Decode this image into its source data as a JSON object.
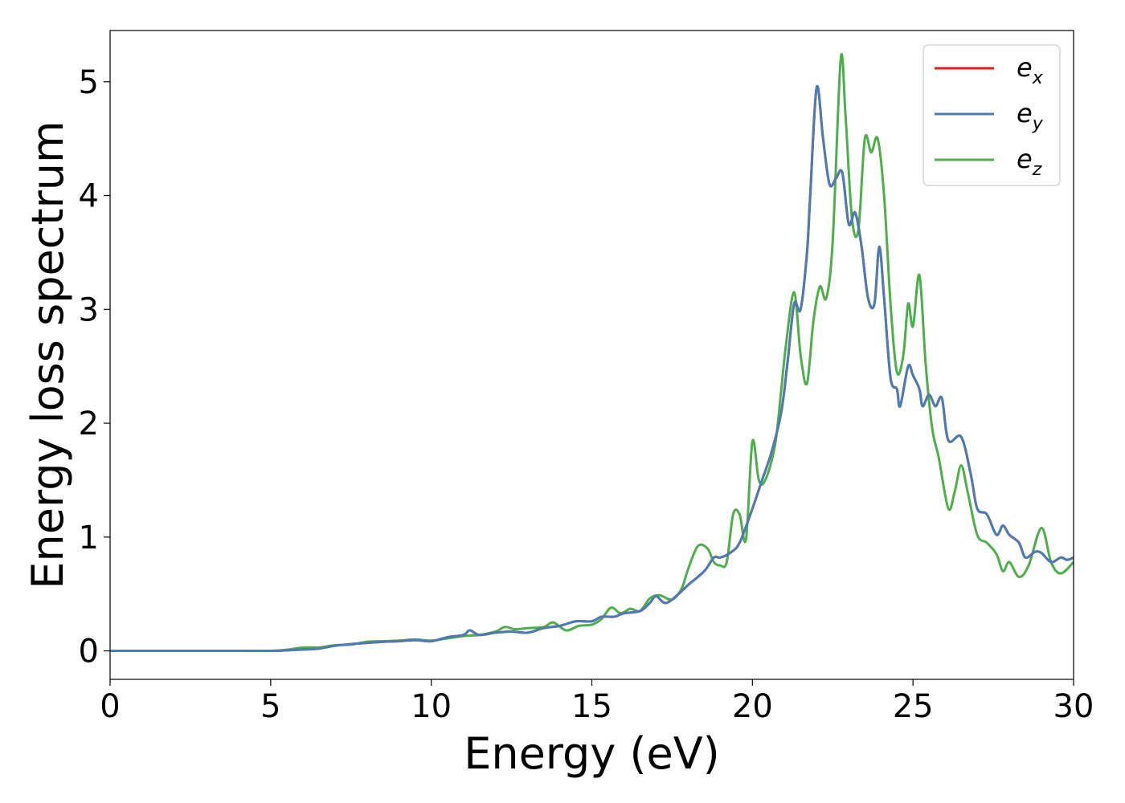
{
  "chart_data": {
    "type": "line",
    "title": "",
    "xlabel": "Energy (eV)",
    "ylabel": "Energy loss spectrum",
    "xlim": [
      0,
      30
    ],
    "ylim": [
      -0.25,
      5.45
    ],
    "xticks": [
      0,
      5,
      10,
      15,
      20,
      25,
      30
    ],
    "yticks": [
      0,
      1,
      2,
      3,
      4,
      5
    ],
    "xtick_labels": [
      "0",
      "5",
      "10",
      "15",
      "20",
      "25",
      "30"
    ],
    "ytick_labels": [
      "0",
      "1",
      "2",
      "3",
      "4",
      "5"
    ],
    "grid": false,
    "legend_position": "top-right",
    "series": [
      {
        "name": "e",
        "name_sub": "x",
        "color": "#e41a1c",
        "points": [
          [
            0,
            0
          ],
          [
            2,
            0
          ],
          [
            4,
            0
          ],
          [
            5,
            0
          ],
          [
            5.5,
            0.005
          ],
          [
            6,
            0.012
          ],
          [
            6.5,
            0.02
          ],
          [
            7,
            0.045
          ],
          [
            7.5,
            0.06
          ],
          [
            8,
            0.07
          ],
          [
            8.5,
            0.08
          ],
          [
            9,
            0.085
          ],
          [
            9.5,
            0.095
          ],
          [
            10,
            0.085
          ],
          [
            10.5,
            0.12
          ],
          [
            11,
            0.14
          ],
          [
            11.2,
            0.18
          ],
          [
            11.5,
            0.14
          ],
          [
            12,
            0.16
          ],
          [
            12.5,
            0.17
          ],
          [
            13,
            0.16
          ],
          [
            13.5,
            0.2
          ],
          [
            14,
            0.22
          ],
          [
            14.5,
            0.26
          ],
          [
            15,
            0.26
          ],
          [
            15.3,
            0.3
          ],
          [
            15.7,
            0.3
          ],
          [
            16,
            0.33
          ],
          [
            16.5,
            0.35
          ],
          [
            16.8,
            0.42
          ],
          [
            17,
            0.48
          ],
          [
            17.3,
            0.42
          ],
          [
            17.7,
            0.5
          ],
          [
            18,
            0.58
          ],
          [
            18.5,
            0.7
          ],
          [
            18.8,
            0.82
          ],
          [
            19,
            0.82
          ],
          [
            19.3,
            0.86
          ],
          [
            19.6,
            0.95
          ],
          [
            20,
            1.25
          ],
          [
            20.3,
            1.5
          ],
          [
            20.6,
            1.75
          ],
          [
            20.9,
            2.1
          ],
          [
            21.1,
            2.55
          ],
          [
            21.3,
            3.05
          ],
          [
            21.5,
            3.0
          ],
          [
            21.7,
            3.5
          ],
          [
            21.8,
            4.0
          ],
          [
            22,
            4.95
          ],
          [
            22.2,
            4.5
          ],
          [
            22.4,
            4.1
          ],
          [
            22.6,
            4.15
          ],
          [
            22.8,
            4.2
          ],
          [
            23,
            3.75
          ],
          [
            23.2,
            3.85
          ],
          [
            23.4,
            3.55
          ],
          [
            23.6,
            3.1
          ],
          [
            23.8,
            3.05
          ],
          [
            23.95,
            3.55
          ],
          [
            24.1,
            3.1
          ],
          [
            24.3,
            2.4
          ],
          [
            24.5,
            2.3
          ],
          [
            24.6,
            2.15
          ],
          [
            24.85,
            2.5
          ],
          [
            25,
            2.42
          ],
          [
            25.2,
            2.3
          ],
          [
            25.3,
            2.15
          ],
          [
            25.5,
            2.25
          ],
          [
            25.7,
            2.15
          ],
          [
            25.9,
            2.22
          ],
          [
            26.1,
            1.85
          ],
          [
            26.5,
            1.88
          ],
          [
            26.8,
            1.55
          ],
          [
            27,
            1.25
          ],
          [
            27.3,
            1.2
          ],
          [
            27.6,
            1.02
          ],
          [
            27.8,
            1.1
          ],
          [
            28,
            1.02
          ],
          [
            28.3,
            0.95
          ],
          [
            28.5,
            0.82
          ],
          [
            28.8,
            0.87
          ],
          [
            29,
            0.86
          ],
          [
            29.3,
            0.78
          ],
          [
            29.6,
            0.82
          ],
          [
            29.8,
            0.8
          ],
          [
            30,
            0.82
          ]
        ]
      },
      {
        "name": "e",
        "name_sub": "y",
        "color": "#4a7cb5",
        "points": [
          [
            0,
            0
          ],
          [
            2,
            0
          ],
          [
            4,
            0
          ],
          [
            5,
            0
          ],
          [
            5.5,
            0.005
          ],
          [
            6,
            0.012
          ],
          [
            6.5,
            0.02
          ],
          [
            7,
            0.045
          ],
          [
            7.5,
            0.06
          ],
          [
            8,
            0.07
          ],
          [
            8.5,
            0.08
          ],
          [
            9,
            0.085
          ],
          [
            9.5,
            0.095
          ],
          [
            10,
            0.085
          ],
          [
            10.5,
            0.12
          ],
          [
            11,
            0.14
          ],
          [
            11.2,
            0.18
          ],
          [
            11.5,
            0.14
          ],
          [
            12,
            0.16
          ],
          [
            12.5,
            0.17
          ],
          [
            13,
            0.16
          ],
          [
            13.5,
            0.2
          ],
          [
            14,
            0.22
          ],
          [
            14.5,
            0.26
          ],
          [
            15,
            0.26
          ],
          [
            15.3,
            0.3
          ],
          [
            15.7,
            0.3
          ],
          [
            16,
            0.33
          ],
          [
            16.5,
            0.35
          ],
          [
            16.8,
            0.42
          ],
          [
            17,
            0.48
          ],
          [
            17.3,
            0.42
          ],
          [
            17.7,
            0.5
          ],
          [
            18,
            0.58
          ],
          [
            18.5,
            0.7
          ],
          [
            18.8,
            0.82
          ],
          [
            19,
            0.82
          ],
          [
            19.3,
            0.86
          ],
          [
            19.6,
            0.95
          ],
          [
            20,
            1.25
          ],
          [
            20.3,
            1.5
          ],
          [
            20.6,
            1.75
          ],
          [
            20.9,
            2.1
          ],
          [
            21.1,
            2.55
          ],
          [
            21.3,
            3.05
          ],
          [
            21.5,
            3.0
          ],
          [
            21.7,
            3.5
          ],
          [
            21.8,
            4.0
          ],
          [
            22,
            4.95
          ],
          [
            22.2,
            4.5
          ],
          [
            22.4,
            4.1
          ],
          [
            22.6,
            4.15
          ],
          [
            22.8,
            4.2
          ],
          [
            23,
            3.75
          ],
          [
            23.2,
            3.85
          ],
          [
            23.4,
            3.55
          ],
          [
            23.6,
            3.1
          ],
          [
            23.8,
            3.05
          ],
          [
            23.95,
            3.55
          ],
          [
            24.1,
            3.1
          ],
          [
            24.3,
            2.4
          ],
          [
            24.5,
            2.3
          ],
          [
            24.6,
            2.15
          ],
          [
            24.85,
            2.5
          ],
          [
            25,
            2.42
          ],
          [
            25.2,
            2.3
          ],
          [
            25.3,
            2.15
          ],
          [
            25.5,
            2.25
          ],
          [
            25.7,
            2.15
          ],
          [
            25.9,
            2.22
          ],
          [
            26.1,
            1.85
          ],
          [
            26.5,
            1.88
          ],
          [
            26.8,
            1.55
          ],
          [
            27,
            1.25
          ],
          [
            27.3,
            1.2
          ],
          [
            27.6,
            1.02
          ],
          [
            27.8,
            1.1
          ],
          [
            28,
            1.02
          ],
          [
            28.3,
            0.95
          ],
          [
            28.5,
            0.82
          ],
          [
            28.8,
            0.87
          ],
          [
            29,
            0.86
          ],
          [
            29.3,
            0.78
          ],
          [
            29.6,
            0.82
          ],
          [
            29.8,
            0.8
          ],
          [
            30,
            0.82
          ]
        ]
      },
      {
        "name": "e",
        "name_sub": "z",
        "color": "#4daf4a",
        "points": [
          [
            0,
            0
          ],
          [
            2,
            0
          ],
          [
            4,
            0
          ],
          [
            5,
            0
          ],
          [
            5.5,
            0.01
          ],
          [
            6,
            0.03
          ],
          [
            6.5,
            0.03
          ],
          [
            7,
            0.05
          ],
          [
            7.5,
            0.055
          ],
          [
            8,
            0.08
          ],
          [
            8.5,
            0.085
          ],
          [
            9,
            0.09
          ],
          [
            9.5,
            0.1
          ],
          [
            10,
            0.09
          ],
          [
            10.5,
            0.11
          ],
          [
            11,
            0.13
          ],
          [
            11.5,
            0.14
          ],
          [
            12,
            0.17
          ],
          [
            12.3,
            0.21
          ],
          [
            12.6,
            0.19
          ],
          [
            13,
            0.2
          ],
          [
            13.5,
            0.21
          ],
          [
            13.8,
            0.25
          ],
          [
            14.2,
            0.18
          ],
          [
            14.6,
            0.22
          ],
          [
            15,
            0.23
          ],
          [
            15.3,
            0.28
          ],
          [
            15.6,
            0.38
          ],
          [
            15.9,
            0.33
          ],
          [
            16.2,
            0.37
          ],
          [
            16.5,
            0.35
          ],
          [
            16.8,
            0.46
          ],
          [
            17.1,
            0.49
          ],
          [
            17.5,
            0.45
          ],
          [
            17.8,
            0.55
          ],
          [
            18,
            0.72
          ],
          [
            18.3,
            0.92
          ],
          [
            18.6,
            0.9
          ],
          [
            18.8,
            0.78
          ],
          [
            19,
            0.75
          ],
          [
            19.2,
            0.78
          ],
          [
            19.4,
            1.2
          ],
          [
            19.6,
            1.2
          ],
          [
            19.8,
            0.98
          ],
          [
            20,
            1.84
          ],
          [
            20.2,
            1.5
          ],
          [
            20.4,
            1.5
          ],
          [
            20.7,
            1.8
          ],
          [
            20.9,
            2.3
          ],
          [
            21.05,
            2.7
          ],
          [
            21.3,
            3.15
          ],
          [
            21.5,
            2.6
          ],
          [
            21.7,
            2.35
          ],
          [
            21.9,
            2.9
          ],
          [
            22.1,
            3.2
          ],
          [
            22.3,
            3.1
          ],
          [
            22.5,
            3.6
          ],
          [
            22.75,
            5.2
          ],
          [
            22.9,
            4.7
          ],
          [
            23.1,
            3.8
          ],
          [
            23.3,
            3.7
          ],
          [
            23.5,
            4.5
          ],
          [
            23.7,
            4.38
          ],
          [
            23.9,
            4.5
          ],
          [
            24.1,
            4.0
          ],
          [
            24.3,
            3.05
          ],
          [
            24.5,
            2.45
          ],
          [
            24.7,
            2.6
          ],
          [
            24.85,
            3.05
          ],
          [
            25,
            2.85
          ],
          [
            25.2,
            3.3
          ],
          [
            25.4,
            2.5
          ],
          [
            25.6,
            1.95
          ],
          [
            25.8,
            1.7
          ],
          [
            26.1,
            1.25
          ],
          [
            26.3,
            1.4
          ],
          [
            26.5,
            1.63
          ],
          [
            26.7,
            1.4
          ],
          [
            27,
            1.02
          ],
          [
            27.3,
            0.95
          ],
          [
            27.6,
            0.85
          ],
          [
            27.8,
            0.7
          ],
          [
            28,
            0.78
          ],
          [
            28.3,
            0.65
          ],
          [
            28.6,
            0.75
          ],
          [
            29,
            1.08
          ],
          [
            29.3,
            0.78
          ],
          [
            29.6,
            0.68
          ],
          [
            30,
            0.78
          ]
        ]
      }
    ]
  }
}
